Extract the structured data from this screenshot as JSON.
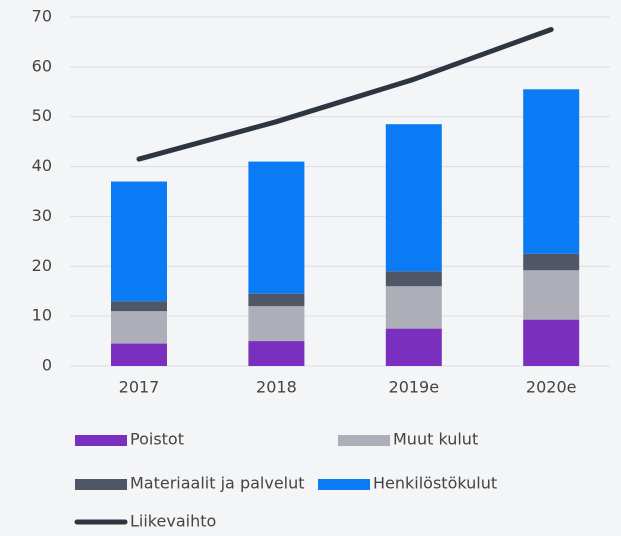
{
  "chart_data": {
    "type": "stacked_bar_line",
    "categories": [
      "2017",
      "2018",
      "2019e",
      "2020e"
    ],
    "series": [
      {
        "name": "Poistot",
        "color": "#7b2fbe",
        "values": [
          4.5,
          5,
          7.5,
          9.3
        ]
      },
      {
        "name": "Muut kulut",
        "color": "#aeaeb8",
        "values": [
          6.5,
          7,
          8.5,
          9.9
        ]
      },
      {
        "name": "Materiaalit ja palvelut",
        "color": "#4f5766",
        "values": [
          2,
          2.5,
          3,
          3.3
        ]
      },
      {
        "name": "Henkilöstökulut",
        "color": "#0a7bf5",
        "values": [
          24,
          26.5,
          29.5,
          33
        ]
      }
    ],
    "line": {
      "name": "Liikevaihto",
      "color": "#2d3540",
      "values": [
        41.5,
        49,
        57.5,
        67.5
      ]
    },
    "ylim": [
      0,
      70
    ],
    "yticks": [
      0,
      10,
      20,
      30,
      40,
      50,
      60,
      70
    ],
    "grid": true
  }
}
